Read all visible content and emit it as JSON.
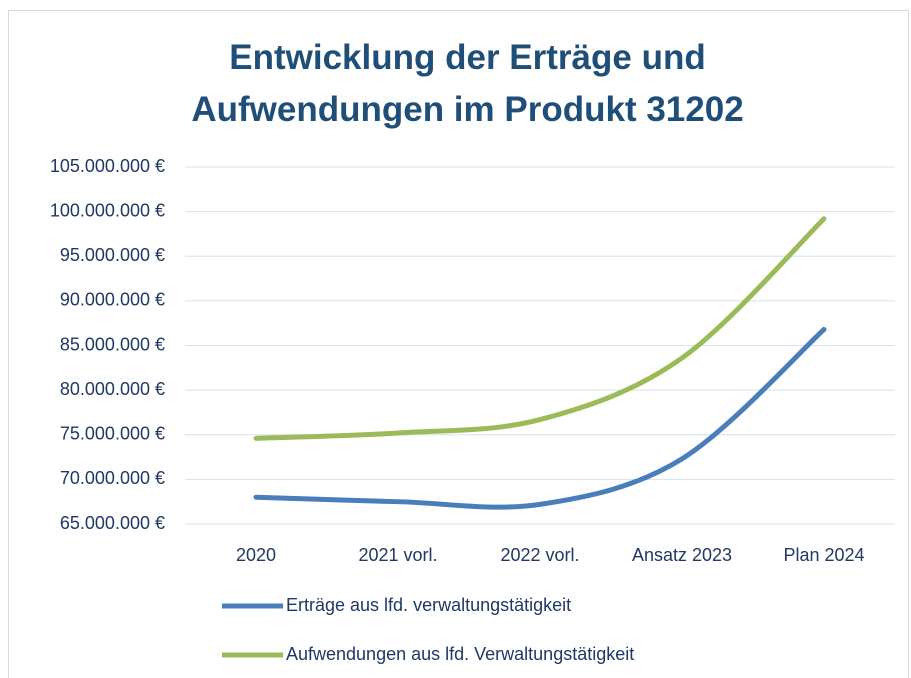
{
  "chart_data": {
    "type": "line",
    "title": "Entwicklung der Erträge und Aufwendungen im Produkt 31202",
    "categories": [
      "2020",
      "2021 vorl.",
      "2022 vorl.",
      "Ansatz 2023",
      "Plan 2024"
    ],
    "series": [
      {
        "name": "Erträge aus lfd. verwaltungstätigkeit",
        "color": "#4a7ebb",
        "values": [
          68000000,
          67500000,
          67200000,
          72300000,
          86800000
        ]
      },
      {
        "name": "Aufwendungen aus lfd. Verwaltungstätigkeit",
        "color": "#9bbb59",
        "values": [
          74600000,
          75200000,
          76700000,
          83600000,
          99200000
        ]
      }
    ],
    "ylim": [
      65000000,
      105000000
    ],
    "yticks": [
      {
        "value": 65000000,
        "label": "65.000.000 €"
      },
      {
        "value": 70000000,
        "label": "70.000.000 €"
      },
      {
        "value": 75000000,
        "label": "75.000.000 €"
      },
      {
        "value": 80000000,
        "label": "80.000.000 €"
      },
      {
        "value": 85000000,
        "label": "85.000.000 €"
      },
      {
        "value": 90000000,
        "label": "90.000.000 €"
      },
      {
        "value": 95000000,
        "label": "95.000.000 €"
      },
      {
        "value": 100000000,
        "label": "100.000.000 €"
      },
      {
        "value": 105000000,
        "label": "105.000.000 €"
      }
    ],
    "grid": true,
    "legend": "bottom"
  }
}
